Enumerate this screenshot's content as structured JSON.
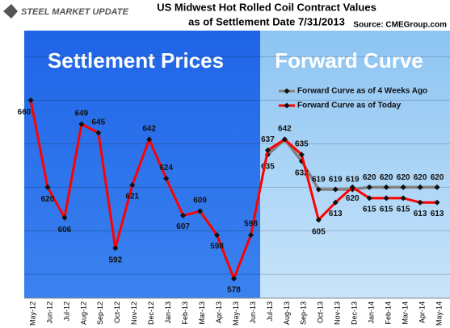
{
  "logo": "STEEL MARKET UPDATE",
  "source": "Source: CMEGroup.com",
  "chart_data": {
    "type": "line",
    "title": "US Midwest Hot Rolled Coil Contract Values",
    "subtitle": "as of Settlement Date 7/31/2013",
    "annotations": [
      "Settlement Prices",
      "Forward Curve"
    ],
    "categories": [
      "May-12",
      "Jun-12",
      "Jul-12",
      "Aug-12",
      "Sep-12",
      "Oct-12",
      "Nov-12",
      "Dec-12",
      "Jan-13",
      "Feb-13",
      "Mar-13",
      "Apr-13",
      "May-13",
      "Jun-13",
      "Jul-13",
      "Aug-13",
      "Sep-13",
      "Oct-13",
      "Nov-13",
      "Dec-13",
      "Jan-14",
      "Feb-14",
      "Mar-14",
      "Apr-14",
      "May-14"
    ],
    "series": [
      {
        "name": "Forward Curve as of 4 Weeks Ago",
        "color": "#808080",
        "values": [
          null,
          null,
          null,
          null,
          null,
          null,
          null,
          null,
          null,
          null,
          null,
          null,
          null,
          null,
          635,
          642,
          632,
          619,
          619,
          619,
          620,
          620,
          620,
          620,
          620
        ]
      },
      {
        "name": "Forward Curve as of Today",
        "color": "#ff0000",
        "values": [
          660,
          620,
          606,
          649,
          645,
          592,
          621,
          642,
          624,
          607,
          609,
          598,
          578,
          598,
          637,
          642,
          635,
          605,
          613,
          620,
          615,
          615,
          615,
          613,
          613
        ]
      }
    ],
    "ylim": [
      569,
      692
    ],
    "yticks": [
      580,
      600,
      620,
      640,
      660,
      680
    ],
    "grid": true,
    "legend": "upper right"
  }
}
